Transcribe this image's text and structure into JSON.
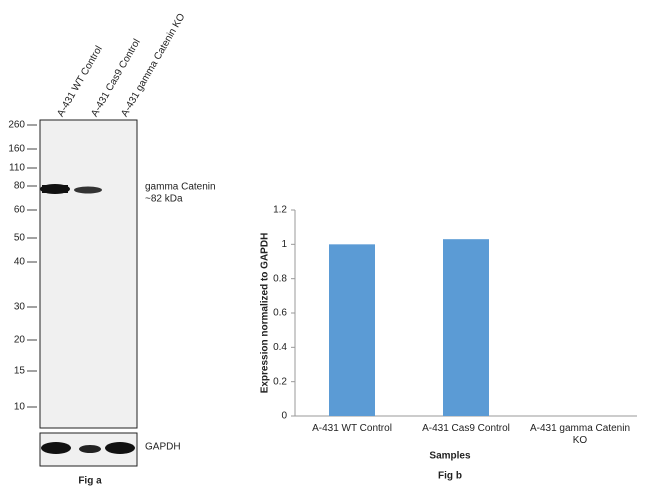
{
  "blot": {
    "lanes": [
      "A-431 WT Control",
      "A-431 Cas9 Control",
      "A-431 gamma Catenin KO"
    ],
    "markers": [
      260,
      160,
      110,
      80,
      60,
      50,
      40,
      30,
      20,
      15,
      10
    ],
    "band_labels": [
      "gamma Catenin",
      "~82 kDa"
    ],
    "loading_control": "GAPDH",
    "caption": "Fig a"
  },
  "chart_data": {
    "type": "bar",
    "caption": "Fig b",
    "x_label": "Samples",
    "y_label": "Expression normalized to GAPDH",
    "categories": [
      "A-431 WT Control",
      "A-431 Cas9 Control",
      "A-431 gamma Catenin KO"
    ],
    "values": [
      1.0,
      1.03,
      0
    ],
    "color": "#5b9bd5",
    "ylim": [
      0,
      1.2
    ],
    "yticks": [
      0,
      0.2,
      0.4,
      0.6,
      0.8,
      1,
      1.2
    ]
  }
}
